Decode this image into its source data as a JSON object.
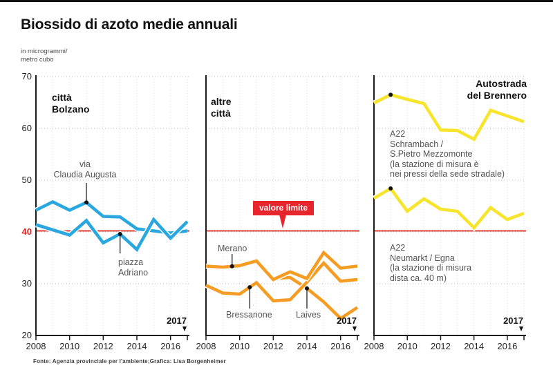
{
  "title": "Biossido di azoto medie annuali",
  "unit_label": "in microgrammi/\nmetro cubo",
  "source": "Fonte: Agenzia provinciale per l'ambiente;Grafica: Lisa Borgenheimer",
  "colors": {
    "blue": "#2ba7e0",
    "orange": "#f59c23",
    "yellow": "#f7e42c",
    "limit_red": "#d9251d",
    "badge_red": "#e8252c",
    "ink": "#111111",
    "annotation_gray": "#555555"
  },
  "y_axis": {
    "ticks": [
      "70",
      "60",
      "50",
      "40",
      "30",
      "20"
    ]
  },
  "x_axis": {
    "ticks": [
      "2008",
      "2010",
      "2012",
      "2014",
      "2016"
    ],
    "end_label": "2017"
  },
  "limit": {
    "value": 40,
    "label": "valore limite"
  },
  "chart_data": [
    {
      "type": "line",
      "panel_title": "città\nBolzano",
      "x": [
        2008,
        2009,
        2010,
        2011,
        2012,
        2013,
        2014,
        2015,
        2016,
        2017
      ],
      "ylim": [
        20,
        70
      ],
      "yticks": [
        20,
        30,
        40,
        50,
        60,
        70
      ],
      "limit_value": 40,
      "series": [
        {
          "name": "via Claudia Augusta",
          "label": "via\nClaudia Augusta",
          "color_key": "blue",
          "values": [
            44.2,
            45.8,
            44.2,
            45.7,
            43.0,
            42.9,
            40.6,
            40.2,
            39.8,
            40.2
          ]
        },
        {
          "name": "piazza Adriano",
          "label": "piazza\nAdriano",
          "color_key": "blue",
          "values": [
            41.4,
            40.4,
            39.4,
            42.2,
            37.9,
            39.6,
            36.6,
            42.4,
            38.8,
            42.0
          ]
        }
      ]
    },
    {
      "type": "line",
      "panel_title": "altre\ncittà",
      "x": [
        2008,
        2009,
        2010,
        2011,
        2012,
        2013,
        2014,
        2015,
        2016,
        2017
      ],
      "ylim": [
        20,
        70
      ],
      "yticks": [
        20,
        30,
        40,
        50,
        60,
        70
      ],
      "limit_value": 40,
      "limit_label": "valore limite",
      "series": [
        {
          "name": "Merano",
          "label": "Merano",
          "color_key": "orange",
          "values": [
            33.4,
            33.2,
            33.5,
            34.4,
            30.8,
            32.3,
            31.0,
            36.0,
            33.0,
            33.4
          ]
        },
        {
          "name": "Bressanone",
          "label": "Bressanone",
          "color_key": "orange",
          "values": [
            29.7,
            28.2,
            28.0,
            30.2,
            26.7,
            26.9,
            30.3,
            34.0,
            30.5,
            30.8
          ]
        },
        {
          "name": "Laives",
          "label": "Laives",
          "color_key": "orange",
          "values": [
            null,
            null,
            null,
            null,
            31.0,
            31.2,
            29.1,
            26.5,
            23.3,
            25.4
          ]
        }
      ]
    },
    {
      "type": "line",
      "panel_title": "Autostrada\ndel Brennero",
      "x": [
        2008,
        2009,
        2010,
        2011,
        2012,
        2013,
        2014,
        2015,
        2016,
        2017
      ],
      "ylim": [
        20,
        70
      ],
      "yticks": [
        20,
        30,
        40,
        50,
        60,
        70
      ],
      "limit_value": 40,
      "series": [
        {
          "name": "A22 Schrambach / S.Pietro Mezzomonte",
          "label": "A22\nSchrambach /\nS.Pietro Mezzomonte\n(la stazione di misura è\nnei pressi della sede stradale)",
          "color_key": "yellow",
          "values": [
            64.9,
            66.5,
            65.6,
            64.8,
            59.7,
            59.6,
            57.9,
            63.5,
            62.4,
            61.3
          ]
        },
        {
          "name": "A22 Neumarkt / Egna",
          "label": "A22\nNeumarkt / Egna\n(la stazione di misura\ndista ca. 40 m)",
          "color_key": "yellow",
          "values": [
            46.5,
            48.4,
            44.0,
            46.4,
            44.4,
            44.0,
            40.8,
            44.7,
            42.4,
            43.6
          ]
        }
      ]
    }
  ]
}
